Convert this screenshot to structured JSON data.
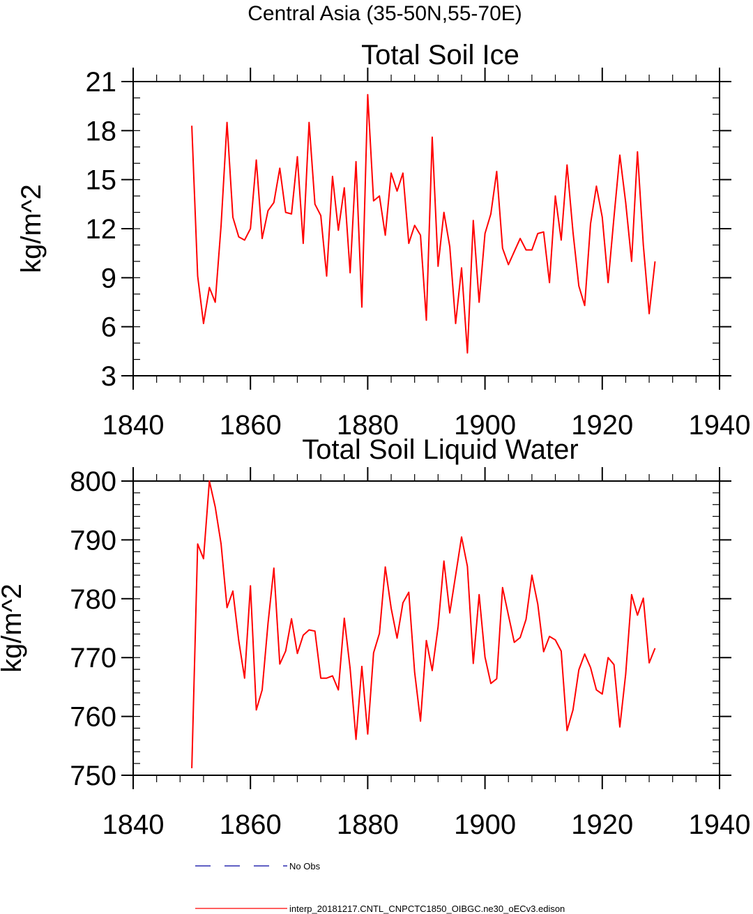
{
  "figure_title": "Central Asia (35-50N,55-70E)",
  "colors": {
    "model_line": "#ff0000",
    "obs_line": "#0000a0",
    "axes": "#000000"
  },
  "legend": [
    {
      "label": "No Obs",
      "style": "dashed",
      "color": "#0000a0"
    },
    {
      "label": "interp_20181217.CNTL_CNPCTC1850_OIBGC.ne30_oECv3.edison",
      "style": "solid",
      "color": "#ff0000"
    }
  ],
  "chart_data": [
    {
      "type": "line",
      "title": "Total Soil Ice",
      "xlabel": "",
      "ylabel": "kg/m^2",
      "xlim": [
        1840,
        1940
      ],
      "ylim": [
        3,
        21
      ],
      "xticks": [
        1840,
        1860,
        1880,
        1900,
        1920,
        1940
      ],
      "yticks": [
        3,
        6,
        9,
        12,
        15,
        18,
        21
      ],
      "yminor_step": 1,
      "xminor_step": 4,
      "series": [
        {
          "name": "interp_20181217.CNTL_CNPCTC1850_OIBGC.ne30_oECv3.edison",
          "x": [
            1850,
            1851,
            1852,
            1853,
            1854,
            1855,
            1856,
            1857,
            1858,
            1859,
            1860,
            1861,
            1862,
            1863,
            1864,
            1865,
            1866,
            1867,
            1868,
            1869,
            1870,
            1871,
            1872,
            1873,
            1874,
            1875,
            1876,
            1877,
            1878,
            1879,
            1880,
            1881,
            1882,
            1883,
            1884,
            1885,
            1886,
            1887,
            1888,
            1889,
            1890,
            1891,
            1892,
            1893,
            1894,
            1895,
            1896,
            1897,
            1898,
            1899,
            1900,
            1901,
            1902,
            1903,
            1904,
            1905,
            1906,
            1907,
            1908,
            1909,
            1910,
            1911,
            1912,
            1913,
            1914,
            1915,
            1916,
            1917,
            1918,
            1919,
            1920,
            1921,
            1922,
            1923,
            1924,
            1925,
            1926,
            1927,
            1928,
            1929
          ],
          "values": [
            18.3,
            9.1,
            6.2,
            8.4,
            7.5,
            12.2,
            18.5,
            12.7,
            11.5,
            11.3,
            12.0,
            16.2,
            11.4,
            13.1,
            13.6,
            15.7,
            13.0,
            12.9,
            16.4,
            11.1,
            18.5,
            13.5,
            12.8,
            9.1,
            15.2,
            11.9,
            14.5,
            9.3,
            16.1,
            7.2,
            20.2,
            13.7,
            14.0,
            11.6,
            15.4,
            14.3,
            15.4,
            11.1,
            12.2,
            11.6,
            6.4,
            17.6,
            9.7,
            13.0,
            10.9,
            6.2,
            9.6,
            4.4,
            12.5,
            7.5,
            11.7,
            12.9,
            15.5,
            10.8,
            9.8,
            10.6,
            11.4,
            10.7,
            10.7,
            11.7,
            11.8,
            8.7,
            14.0,
            11.3,
            15.9,
            11.8,
            8.5,
            7.3,
            12.3,
            14.6,
            12.7,
            8.7,
            12.7,
            16.5,
            13.6,
            10.0,
            16.7,
            11.0,
            6.8,
            10.0
          ],
          "color": "#ff0000"
        }
      ]
    },
    {
      "type": "line",
      "title": "Total Soil Liquid Water",
      "xlabel": "",
      "ylabel": "kg/m^2",
      "xlim": [
        1840,
        1940
      ],
      "ylim": [
        750,
        800
      ],
      "xticks": [
        1840,
        1860,
        1880,
        1900,
        1920,
        1940
      ],
      "yticks": [
        750,
        760,
        770,
        780,
        790,
        800
      ],
      "yminor_step": 2,
      "xminor_step": 4,
      "series": [
        {
          "name": "interp_20181217.CNTL_CNPCTC1850_OIBGC.ne30_oECv3.edison",
          "x": [
            1850,
            1851,
            1852,
            1853,
            1854,
            1855,
            1856,
            1857,
            1858,
            1859,
            1860,
            1861,
            1862,
            1863,
            1864,
            1865,
            1866,
            1867,
            1868,
            1869,
            1870,
            1871,
            1872,
            1873,
            1874,
            1875,
            1876,
            1877,
            1878,
            1879,
            1880,
            1881,
            1882,
            1883,
            1884,
            1885,
            1886,
            1887,
            1888,
            1889,
            1890,
            1891,
            1892,
            1893,
            1894,
            1895,
            1896,
            1897,
            1898,
            1899,
            1900,
            1901,
            1902,
            1903,
            1904,
            1905,
            1906,
            1907,
            1908,
            1909,
            1910,
            1911,
            1912,
            1913,
            1914,
            1915,
            1916,
            1917,
            1918,
            1919,
            1920,
            1921,
            1922,
            1923,
            1924,
            1925,
            1926,
            1927,
            1928,
            1929
          ],
          "values": [
            751.2,
            789.3,
            786.8,
            800.0,
            795.6,
            789.3,
            778.5,
            781.3,
            772.9,
            766.5,
            782.2,
            761.1,
            764.5,
            775.8,
            785.2,
            768.9,
            771.1,
            776.6,
            770.7,
            773.8,
            774.7,
            774.5,
            766.5,
            766.5,
            766.9,
            764.5,
            776.7,
            768.1,
            756.1,
            768.5,
            757.0,
            770.8,
            774.1,
            785.4,
            778.4,
            773.3,
            779.3,
            781.1,
            767.5,
            759.2,
            772.9,
            767.8,
            775.2,
            786.4,
            777.6,
            784.0,
            790.5,
            785.5,
            769.0,
            780.7,
            770.1,
            765.6,
            766.4,
            781.9,
            777.2,
            772.6,
            773.4,
            776.5,
            784.0,
            779.1,
            771.0,
            773.6,
            773.0,
            771.1,
            757.6,
            761.1,
            767.9,
            770.6,
            768.3,
            764.5,
            763.8,
            770.0,
            768.8,
            758.2,
            767.2,
            780.7,
            777.2,
            780.1,
            769.1,
            771.6
          ],
          "color": "#ff0000"
        }
      ]
    }
  ]
}
